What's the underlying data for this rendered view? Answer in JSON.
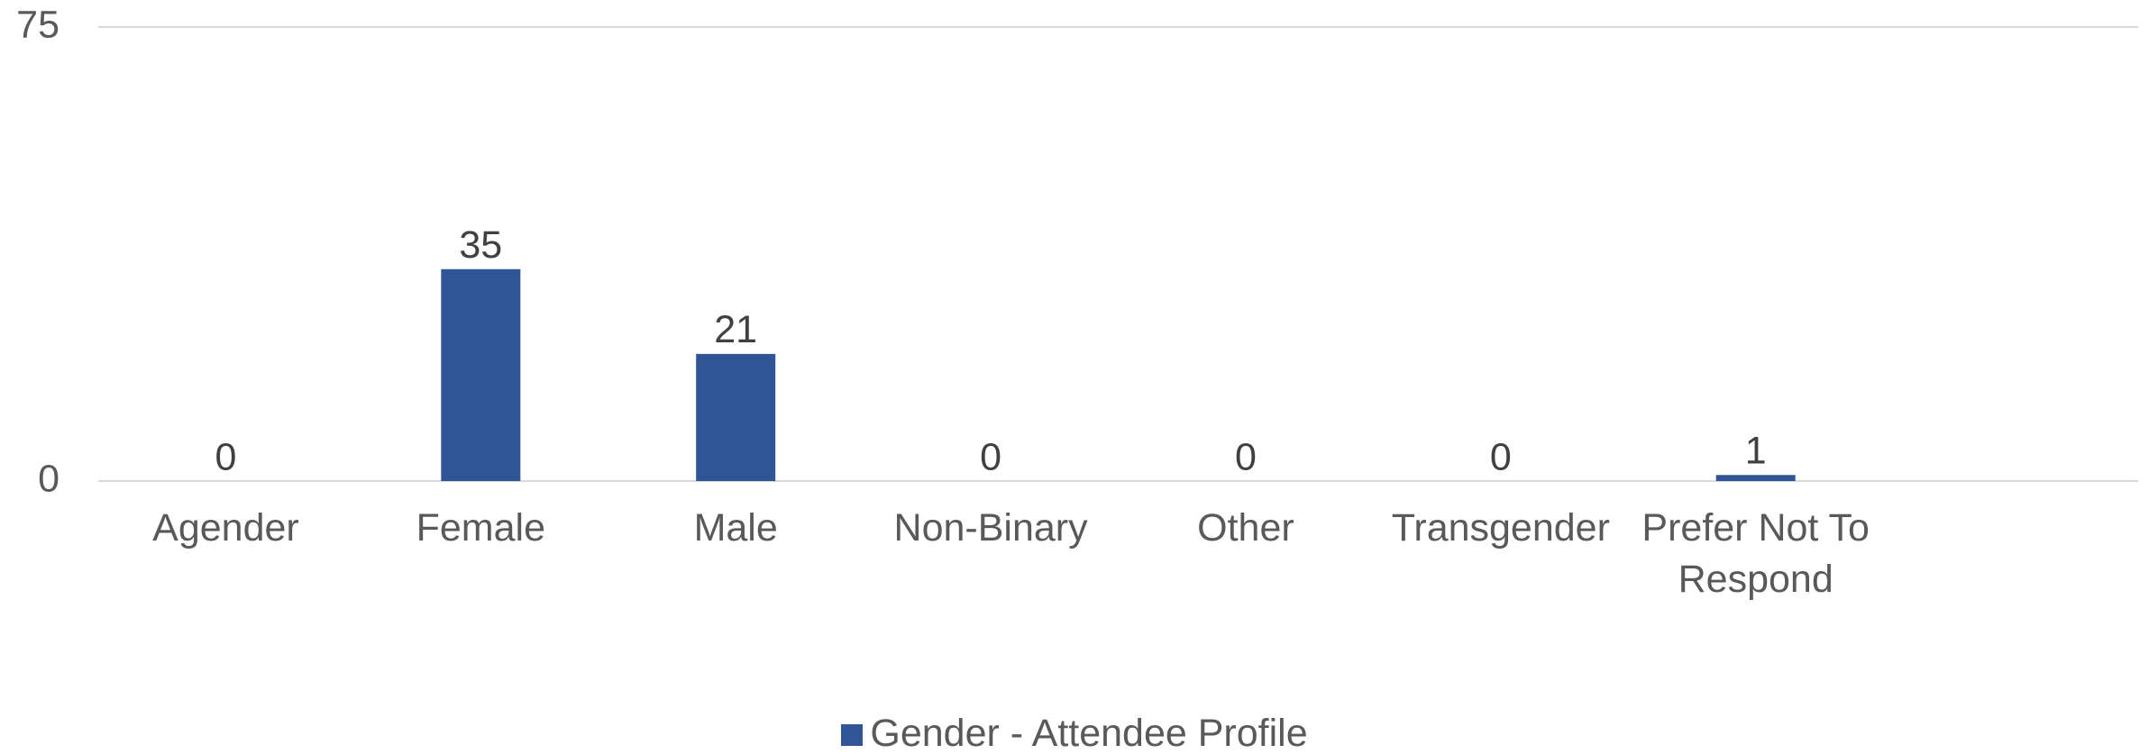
{
  "chart_data": {
    "type": "bar",
    "categories": [
      "Agender",
      "Female",
      "Male",
      "Non-Binary",
      "Other",
      "Transgender",
      "Prefer Not To Respond",
      null
    ],
    "series": [
      {
        "name": "Gender - Attendee Profile",
        "color": "#2f5597",
        "values": [
          0,
          35,
          21,
          0,
          0,
          0,
          1,
          null
        ]
      }
    ],
    "ylim": [
      0,
      75
    ],
    "yticks": [
      0,
      75
    ],
    "grid": true,
    "legend": "bottom"
  }
}
